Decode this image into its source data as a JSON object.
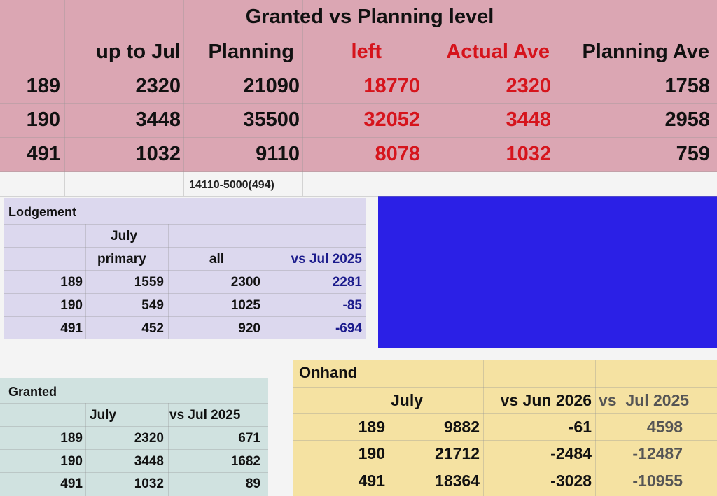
{
  "main": {
    "title": "Granted vs Planning level",
    "header": [
      "up to Jul",
      "Planning",
      "left",
      "Actual Ave",
      "Planning Ave"
    ],
    "rows": [
      [
        "189",
        2320,
        21090,
        18770,
        2320,
        1758
      ],
      [
        "190",
        3448,
        35500,
        32052,
        3448,
        2958
      ],
      [
        "491",
        1032,
        9110,
        8078,
        1032,
        759
      ]
    ],
    "note": "14110-5000(494)"
  },
  "lodgement": {
    "title": "Lodgement",
    "month": "July",
    "header": [
      "primary",
      "all",
      "vs Jul 2025"
    ],
    "rows": [
      [
        189,
        1559,
        2300,
        2281
      ],
      [
        190,
        549,
        1025,
        -85
      ],
      [
        491,
        452,
        920,
        -694
      ]
    ]
  },
  "granted": {
    "title": "Granted",
    "header": [
      "July",
      "vs Jul 2025"
    ],
    "rows": [
      [
        189,
        2320,
        671
      ],
      [
        190,
        3448,
        1682
      ],
      [
        491,
        1032,
        89
      ]
    ]
  },
  "onhand": {
    "title": "Onhand",
    "header": [
      "July",
      "vs Jun 2026",
      "vs  Jul 2025"
    ],
    "rows": [
      [
        189,
        9882,
        -61,
        4598
      ],
      [
        190,
        21712,
        -2484,
        -12487
      ],
      [
        491,
        18364,
        -3028,
        -10955
      ]
    ]
  }
}
